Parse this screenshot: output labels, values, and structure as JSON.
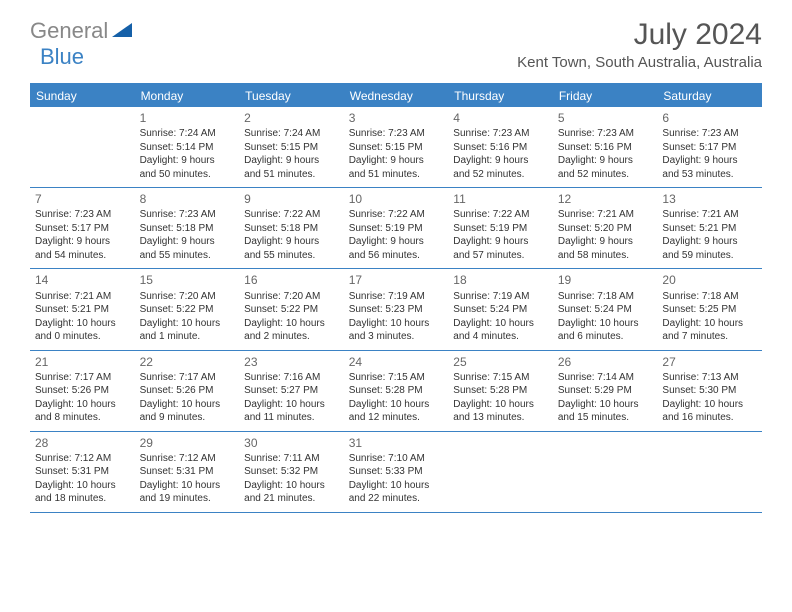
{
  "logo": {
    "gray": "General",
    "blue": "Blue"
  },
  "title": "July 2024",
  "location": "Kent Town, South Australia, Australia",
  "colors": {
    "accent": "#3b82c4",
    "logo_gray": "#888888",
    "text": "#333333",
    "background": "#ffffff"
  },
  "days_of_week": [
    "Sunday",
    "Monday",
    "Tuesday",
    "Wednesday",
    "Thursday",
    "Friday",
    "Saturday"
  ],
  "weeks": [
    [
      null,
      {
        "n": "1",
        "sr": "Sunrise: 7:24 AM",
        "ss": "Sunset: 5:14 PM",
        "d1": "Daylight: 9 hours",
        "d2": "and 50 minutes."
      },
      {
        "n": "2",
        "sr": "Sunrise: 7:24 AM",
        "ss": "Sunset: 5:15 PM",
        "d1": "Daylight: 9 hours",
        "d2": "and 51 minutes."
      },
      {
        "n": "3",
        "sr": "Sunrise: 7:23 AM",
        "ss": "Sunset: 5:15 PM",
        "d1": "Daylight: 9 hours",
        "d2": "and 51 minutes."
      },
      {
        "n": "4",
        "sr": "Sunrise: 7:23 AM",
        "ss": "Sunset: 5:16 PM",
        "d1": "Daylight: 9 hours",
        "d2": "and 52 minutes."
      },
      {
        "n": "5",
        "sr": "Sunrise: 7:23 AM",
        "ss": "Sunset: 5:16 PM",
        "d1": "Daylight: 9 hours",
        "d2": "and 52 minutes."
      },
      {
        "n": "6",
        "sr": "Sunrise: 7:23 AM",
        "ss": "Sunset: 5:17 PM",
        "d1": "Daylight: 9 hours",
        "d2": "and 53 minutes."
      }
    ],
    [
      {
        "n": "7",
        "sr": "Sunrise: 7:23 AM",
        "ss": "Sunset: 5:17 PM",
        "d1": "Daylight: 9 hours",
        "d2": "and 54 minutes."
      },
      {
        "n": "8",
        "sr": "Sunrise: 7:23 AM",
        "ss": "Sunset: 5:18 PM",
        "d1": "Daylight: 9 hours",
        "d2": "and 55 minutes."
      },
      {
        "n": "9",
        "sr": "Sunrise: 7:22 AM",
        "ss": "Sunset: 5:18 PM",
        "d1": "Daylight: 9 hours",
        "d2": "and 55 minutes."
      },
      {
        "n": "10",
        "sr": "Sunrise: 7:22 AM",
        "ss": "Sunset: 5:19 PM",
        "d1": "Daylight: 9 hours",
        "d2": "and 56 minutes."
      },
      {
        "n": "11",
        "sr": "Sunrise: 7:22 AM",
        "ss": "Sunset: 5:19 PM",
        "d1": "Daylight: 9 hours",
        "d2": "and 57 minutes."
      },
      {
        "n": "12",
        "sr": "Sunrise: 7:21 AM",
        "ss": "Sunset: 5:20 PM",
        "d1": "Daylight: 9 hours",
        "d2": "and 58 minutes."
      },
      {
        "n": "13",
        "sr": "Sunrise: 7:21 AM",
        "ss": "Sunset: 5:21 PM",
        "d1": "Daylight: 9 hours",
        "d2": "and 59 minutes."
      }
    ],
    [
      {
        "n": "14",
        "sr": "Sunrise: 7:21 AM",
        "ss": "Sunset: 5:21 PM",
        "d1": "Daylight: 10 hours",
        "d2": "and 0 minutes."
      },
      {
        "n": "15",
        "sr": "Sunrise: 7:20 AM",
        "ss": "Sunset: 5:22 PM",
        "d1": "Daylight: 10 hours",
        "d2": "and 1 minute."
      },
      {
        "n": "16",
        "sr": "Sunrise: 7:20 AM",
        "ss": "Sunset: 5:22 PM",
        "d1": "Daylight: 10 hours",
        "d2": "and 2 minutes."
      },
      {
        "n": "17",
        "sr": "Sunrise: 7:19 AM",
        "ss": "Sunset: 5:23 PM",
        "d1": "Daylight: 10 hours",
        "d2": "and 3 minutes."
      },
      {
        "n": "18",
        "sr": "Sunrise: 7:19 AM",
        "ss": "Sunset: 5:24 PM",
        "d1": "Daylight: 10 hours",
        "d2": "and 4 minutes."
      },
      {
        "n": "19",
        "sr": "Sunrise: 7:18 AM",
        "ss": "Sunset: 5:24 PM",
        "d1": "Daylight: 10 hours",
        "d2": "and 6 minutes."
      },
      {
        "n": "20",
        "sr": "Sunrise: 7:18 AM",
        "ss": "Sunset: 5:25 PM",
        "d1": "Daylight: 10 hours",
        "d2": "and 7 minutes."
      }
    ],
    [
      {
        "n": "21",
        "sr": "Sunrise: 7:17 AM",
        "ss": "Sunset: 5:26 PM",
        "d1": "Daylight: 10 hours",
        "d2": "and 8 minutes."
      },
      {
        "n": "22",
        "sr": "Sunrise: 7:17 AM",
        "ss": "Sunset: 5:26 PM",
        "d1": "Daylight: 10 hours",
        "d2": "and 9 minutes."
      },
      {
        "n": "23",
        "sr": "Sunrise: 7:16 AM",
        "ss": "Sunset: 5:27 PM",
        "d1": "Daylight: 10 hours",
        "d2": "and 11 minutes."
      },
      {
        "n": "24",
        "sr": "Sunrise: 7:15 AM",
        "ss": "Sunset: 5:28 PM",
        "d1": "Daylight: 10 hours",
        "d2": "and 12 minutes."
      },
      {
        "n": "25",
        "sr": "Sunrise: 7:15 AM",
        "ss": "Sunset: 5:28 PM",
        "d1": "Daylight: 10 hours",
        "d2": "and 13 minutes."
      },
      {
        "n": "26",
        "sr": "Sunrise: 7:14 AM",
        "ss": "Sunset: 5:29 PM",
        "d1": "Daylight: 10 hours",
        "d2": "and 15 minutes."
      },
      {
        "n": "27",
        "sr": "Sunrise: 7:13 AM",
        "ss": "Sunset: 5:30 PM",
        "d1": "Daylight: 10 hours",
        "d2": "and 16 minutes."
      }
    ],
    [
      {
        "n": "28",
        "sr": "Sunrise: 7:12 AM",
        "ss": "Sunset: 5:31 PM",
        "d1": "Daylight: 10 hours",
        "d2": "and 18 minutes."
      },
      {
        "n": "29",
        "sr": "Sunrise: 7:12 AM",
        "ss": "Sunset: 5:31 PM",
        "d1": "Daylight: 10 hours",
        "d2": "and 19 minutes."
      },
      {
        "n": "30",
        "sr": "Sunrise: 7:11 AM",
        "ss": "Sunset: 5:32 PM",
        "d1": "Daylight: 10 hours",
        "d2": "and 21 minutes."
      },
      {
        "n": "31",
        "sr": "Sunrise: 7:10 AM",
        "ss": "Sunset: 5:33 PM",
        "d1": "Daylight: 10 hours",
        "d2": "and 22 minutes."
      },
      null,
      null,
      null
    ]
  ]
}
